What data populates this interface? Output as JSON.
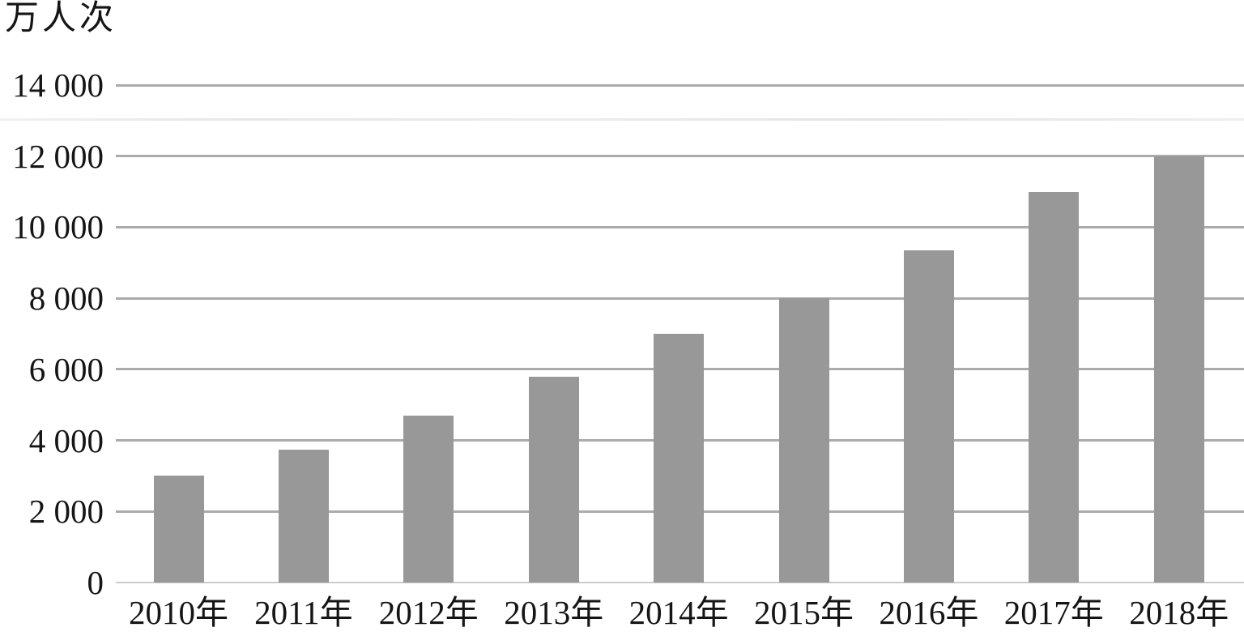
{
  "chart_data": {
    "type": "bar",
    "title": "",
    "unit_label": "万人次",
    "ylabel": "万人次",
    "xlabel": "",
    "categories": [
      "2010年",
      "2011年",
      "2012年",
      "2013年",
      "2014年",
      "2015年",
      "2016年",
      "2017年",
      "2018年"
    ],
    "values": [
      3000,
      3750,
      4700,
      5800,
      7000,
      8000,
      9350,
      11000,
      12000
    ],
    "ylim": [
      0,
      14000
    ],
    "y_tick_values": [
      14000,
      12000,
      10000,
      8000,
      6000,
      4000,
      2000,
      0
    ],
    "y_tick_labels": [
      "14 000",
      "12 000",
      "10 000",
      "8 000",
      "6 000",
      "4 000",
      "2 000",
      "0"
    ],
    "grid": "horizontal",
    "legend_position": "none",
    "colors": {
      "bar": "#989898",
      "gridline": "#ababab",
      "baseline": "#cbcbcb",
      "text": "#151515",
      "background": "#ffffff"
    }
  }
}
